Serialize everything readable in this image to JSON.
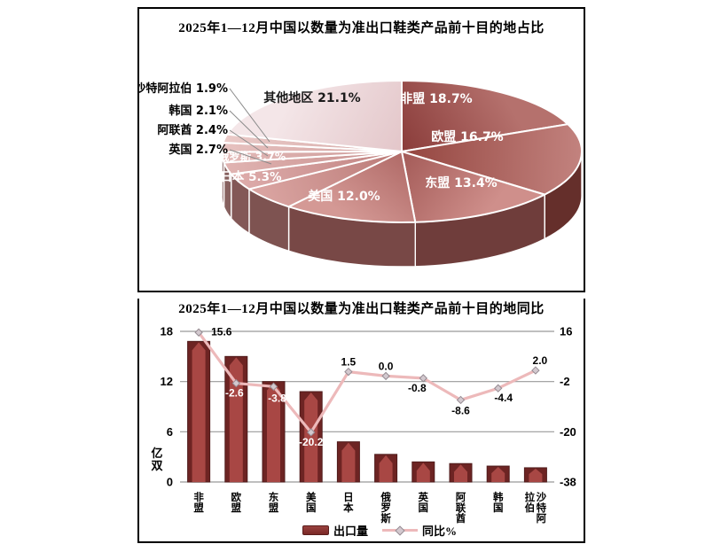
{
  "top_chart": {
    "title": "2025年1—12月中国以数量为准出口鞋类产品前十目的地占比",
    "chart_data": {
      "type": "pie",
      "unit": "%",
      "slices": [
        {
          "label": "非盟",
          "value": 18.7,
          "color_center": "#8a3c3a",
          "color_edge": "#b5716d",
          "text_color": "#ffffff"
        },
        {
          "label": "欧盟",
          "value": 16.7,
          "color_center": "#94453f",
          "color_edge": "#c2827e",
          "text_color": "#ffffff"
        },
        {
          "label": "东盟",
          "value": 13.4,
          "color_center": "#a35a57",
          "color_edge": "#cf8f8b",
          "text_color": "#ffffff"
        },
        {
          "label": "美国",
          "value": 12.0,
          "color_center": "#b06a67",
          "color_edge": "#d49995",
          "text_color": "#ffffff"
        },
        {
          "label": "日本",
          "value": 5.3,
          "color_center": "#ba7a77",
          "color_edge": "#d9a3a0",
          "text_color": "#ffffff"
        },
        {
          "label": "俄罗斯",
          "value": 3.7,
          "color_center": "#c08280",
          "color_edge": "#ddabaa",
          "text_color": "#ffffff"
        },
        {
          "label": "英国",
          "value": 2.7,
          "color_center": "#c68e8c",
          "color_edge": "#e0b3b1",
          "text_color": "#000000"
        },
        {
          "label": "阿联酋",
          "value": 2.4,
          "color_center": "#cb9694",
          "color_edge": "#e3bab8",
          "text_color": "#000000"
        },
        {
          "label": "韩国",
          "value": 2.1,
          "color_center": "#d0a09e",
          "color_edge": "#e7c2c0",
          "text_color": "#000000"
        },
        {
          "label": "沙特阿拉伯",
          "value": 1.9,
          "color_center": "#d5a9a7",
          "color_edge": "#eacac8",
          "text_color": "#000000"
        },
        {
          "label": "其他地区",
          "value": 21.1,
          "color_center": "#e3c6c9",
          "color_edge": "#f4e6e8",
          "text_color": "#1a1a1a"
        }
      ]
    }
  },
  "bottom_chart": {
    "title": "2025年1—12月中国以数量为准出口鞋类产品前十目的地同比",
    "chart_data": {
      "type": "bar+line",
      "categories": [
        "非盟",
        "欧盟",
        "东盟",
        "美国",
        "日本",
        "俄罗斯",
        "英国",
        "阿联酋",
        "韩国",
        "沙特阿拉伯"
      ],
      "series": [
        {
          "name": "出口量",
          "type": "bar",
          "axis": "left",
          "unit": "亿双",
          "values": [
            16.8,
            15.0,
            12.0,
            10.8,
            4.8,
            3.3,
            2.4,
            2.2,
            1.9,
            1.7
          ]
        },
        {
          "name": "同比%",
          "type": "line",
          "axis": "right",
          "unit": "%",
          "values": [
            15.6,
            -2.6,
            -3.8,
            -20.2,
            1.5,
            0.0,
            -0.8,
            -8.6,
            -4.4,
            2.0
          ]
        }
      ],
      "left_axis": {
        "label": "亿双",
        "ticks": [
          18,
          12,
          6,
          0
        ],
        "min": 0,
        "max": 18
      },
      "right_axis": {
        "ticks": [
          16,
          -2,
          -20,
          -38
        ],
        "min": -38,
        "max": 16
      },
      "line_label_colors": [
        "#000000",
        "#ffffff",
        "#ffffff",
        "#ffffff",
        "#000000",
        "#000000",
        "#000000",
        "#000000",
        "#000000",
        "#000000"
      ],
      "colors": {
        "bar_center": "#a84744",
        "bar_side": "#6d2423",
        "bar_outline": "#4f1b1b",
        "line": "#edb9ba",
        "marker_fill": "#d3c9cf",
        "marker_stroke": "#968c93",
        "grid": "#999999"
      }
    }
  }
}
